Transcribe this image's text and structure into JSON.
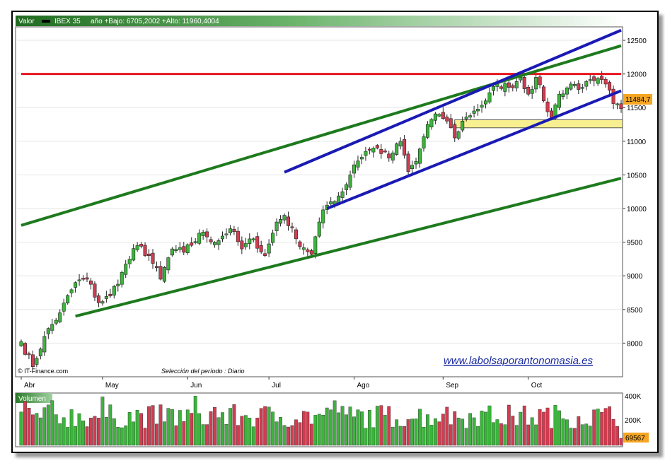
{
  "header": {
    "valor_label": "Valor",
    "symbol": "IBEX 35",
    "range_text": "año +Bajo: 6705,2002 +Alto: 11960,4004"
  },
  "footer": {
    "source": "© IT-Finance.com",
    "period": "Selección del período : Diario",
    "website": "www.labolsaporantonomasia.es"
  },
  "volume_panel": {
    "title": "Volumen",
    "axis_labels": [
      "400K",
      "200K"
    ],
    "last_value": "69567"
  },
  "colors": {
    "up": "#3cb43c",
    "down": "#d23c50",
    "resistance": "#e8141e",
    "channel_blue": "#1a1ab4",
    "trend_green": "#1e7a1e",
    "zone_yellow": "#f8f090",
    "price_tag": "#f5a623"
  },
  "chart_data": {
    "type": "candlestick",
    "y_axis": {
      "min": 7500,
      "max": 12700,
      "ticks": [
        8000,
        8500,
        9000,
        9500,
        10000,
        10500,
        11000,
        11500,
        12000,
        12500
      ]
    },
    "x_axis": {
      "months": [
        "Abr",
        "May",
        "Jun",
        "Jul",
        "Ago",
        "Sep",
        "Oct"
      ]
    },
    "last_price_label": "11484,7",
    "lines": [
      {
        "name": "resistance",
        "style": "red",
        "from": {
          "index": 0,
          "value": 12000
        },
        "to": {
          "index": 155,
          "value": 12000
        }
      },
      {
        "name": "upper-trend",
        "style": "green",
        "from": {
          "index": 0,
          "value": 9750
        },
        "to": {
          "index": 155,
          "value": 12420
        }
      },
      {
        "name": "lower-trend",
        "style": "green",
        "from": {
          "index": 14,
          "value": 8400
        },
        "to": {
          "index": 155,
          "value": 10450
        }
      },
      {
        "name": "channel-top",
        "style": "blue",
        "from": {
          "index": 68,
          "value": 10540
        },
        "to": {
          "index": 155,
          "value": 12650
        }
      },
      {
        "name": "channel-bottom",
        "style": "blue",
        "from": {
          "index": 79,
          "value": 10000
        },
        "to": {
          "index": 155,
          "value": 11750
        }
      }
    ],
    "zone": {
      "from_index": 112,
      "to_index": 155,
      "low": 11200,
      "high": 11320
    },
    "anchors": [
      {
        "i": 0,
        "c": 8020
      },
      {
        "i": 3,
        "c": 7650
      },
      {
        "i": 6,
        "c": 8100
      },
      {
        "i": 10,
        "c": 8450
      },
      {
        "i": 14,
        "c": 8900
      },
      {
        "i": 17,
        "c": 8950
      },
      {
        "i": 20,
        "c": 8600
      },
      {
        "i": 23,
        "c": 8700
      },
      {
        "i": 26,
        "c": 9050
      },
      {
        "i": 30,
        "c": 9450
      },
      {
        "i": 33,
        "c": 9300
      },
      {
        "i": 36,
        "c": 8950
      },
      {
        "i": 39,
        "c": 9400
      },
      {
        "i": 42,
        "c": 9350
      },
      {
        "i": 47,
        "c": 9650
      },
      {
        "i": 50,
        "c": 9500
      },
      {
        "i": 54,
        "c": 9700
      },
      {
        "i": 57,
        "c": 9400
      },
      {
        "i": 60,
        "c": 9550
      },
      {
        "i": 63,
        "c": 9300
      },
      {
        "i": 66,
        "c": 9800
      },
      {
        "i": 68,
        "c": 9900
      },
      {
        "i": 71,
        "c": 9550
      },
      {
        "i": 75,
        "c": 9320
      },
      {
        "i": 77,
        "c": 9800
      },
      {
        "i": 79,
        "c": 10050
      },
      {
        "i": 83,
        "c": 10250
      },
      {
        "i": 86,
        "c": 10650
      },
      {
        "i": 89,
        "c": 10850
      },
      {
        "i": 92,
        "c": 10900
      },
      {
        "i": 95,
        "c": 10750
      },
      {
        "i": 98,
        "c": 11000
      },
      {
        "i": 100,
        "c": 10550
      },
      {
        "i": 102,
        "c": 10700
      },
      {
        "i": 105,
        "c": 11250
      },
      {
        "i": 108,
        "c": 11400
      },
      {
        "i": 110,
        "c": 11300
      },
      {
        "i": 112,
        "c": 11050
      },
      {
        "i": 114,
        "c": 11300
      },
      {
        "i": 117,
        "c": 11450
      },
      {
        "i": 120,
        "c": 11600
      },
      {
        "i": 123,
        "c": 11850
      },
      {
        "i": 126,
        "c": 11800
      },
      {
        "i": 129,
        "c": 11950
      },
      {
        "i": 131,
        "c": 11700
      },
      {
        "i": 133,
        "c": 11950
      },
      {
        "i": 135,
        "c": 11600
      },
      {
        "i": 137,
        "c": 11350
      },
      {
        "i": 139,
        "c": 11700
      },
      {
        "i": 142,
        "c": 11850
      },
      {
        "i": 145,
        "c": 11800
      },
      {
        "i": 148,
        "c": 11900
      },
      {
        "i": 151,
        "c": 11850
      },
      {
        "i": 153,
        "c": 11560
      },
      {
        "i": 155,
        "c": 11484.7
      }
    ]
  }
}
